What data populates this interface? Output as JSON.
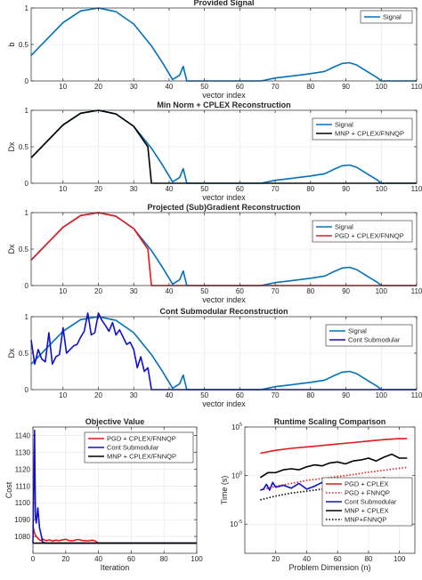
{
  "chart_data": [
    {
      "type": "line",
      "title": "Provided Signal",
      "xlabel": "vector index",
      "ylabel": "b",
      "xlim": [
        1,
        110
      ],
      "ylim": [
        0,
        1
      ],
      "xticks": [
        "10",
        "20",
        "30",
        "40",
        "50",
        "60",
        "70",
        "80",
        "90",
        "100",
        "110"
      ],
      "yticks": [
        "0",
        "0.5",
        "1"
      ],
      "grid": true,
      "legend_position": "top-right",
      "series": [
        {
          "name": "Signal",
          "color": "#0072BD",
          "x": [
            1,
            5,
            10,
            15,
            20,
            25,
            30,
            35,
            38,
            41,
            43,
            44,
            45,
            50,
            60,
            66,
            70,
            75,
            80,
            84,
            87,
            89,
            91,
            93,
            95,
            97,
            99,
            100,
            110
          ],
          "y": [
            0.35,
            0.55,
            0.8,
            0.96,
            1.0,
            0.95,
            0.78,
            0.48,
            0.26,
            0.02,
            0.08,
            0.2,
            0.0,
            0.0,
            0.0,
            0.0,
            0.04,
            0.07,
            0.1,
            0.13,
            0.2,
            0.24,
            0.25,
            0.22,
            0.16,
            0.1,
            0.04,
            0.0,
            0.0
          ]
        }
      ]
    },
    {
      "type": "line",
      "title": "Min Norm + CPLEX Reconstruction",
      "xlabel": "vector index",
      "ylabel": "Dx",
      "xlim": [
        1,
        110
      ],
      "ylim": [
        0,
        1
      ],
      "xticks": [
        "10",
        "20",
        "30",
        "40",
        "50",
        "60",
        "70",
        "80",
        "90",
        "100",
        "110"
      ],
      "yticks": [
        "0",
        "0.5",
        "1"
      ],
      "grid": true,
      "legend_position": "top-right",
      "series": [
        {
          "name": "Signal",
          "color": "#0072BD",
          "x": [
            1,
            5,
            10,
            15,
            20,
            25,
            30,
            35,
            38,
            41,
            43,
            44,
            45,
            50,
            60,
            66,
            70,
            75,
            80,
            84,
            87,
            89,
            91,
            93,
            95,
            97,
            99,
            100,
            110
          ],
          "y": [
            0.35,
            0.55,
            0.8,
            0.96,
            1.0,
            0.95,
            0.78,
            0.48,
            0.26,
            0.02,
            0.08,
            0.2,
            0.0,
            0.0,
            0.0,
            0.0,
            0.04,
            0.07,
            0.1,
            0.13,
            0.2,
            0.24,
            0.25,
            0.22,
            0.16,
            0.1,
            0.04,
            0.0,
            0.0
          ]
        },
        {
          "name": "MNP + CPLEX/FNNQP",
          "color": "#000000",
          "x": [
            1,
            5,
            10,
            15,
            20,
            25,
            30,
            34,
            35,
            40,
            50,
            60,
            70,
            80,
            90,
            100,
            110
          ],
          "y": [
            0.35,
            0.55,
            0.8,
            0.96,
            1.0,
            0.95,
            0.78,
            0.5,
            0.0,
            0.0,
            0.0,
            0.0,
            0.0,
            0.0,
            0.0,
            0.0,
            0.0
          ]
        }
      ]
    },
    {
      "type": "line",
      "title": "Projected (Sub)Gradient Reconstruction",
      "xlabel": "vector index",
      "ylabel": "Dx",
      "xlim": [
        1,
        110
      ],
      "ylim": [
        0,
        1
      ],
      "xticks": [
        "10",
        "20",
        "30",
        "40",
        "50",
        "60",
        "70",
        "80",
        "90",
        "100",
        "110"
      ],
      "yticks": [
        "0",
        "0.5",
        "1"
      ],
      "grid": true,
      "legend_position": "top-right",
      "series": [
        {
          "name": "Signal",
          "color": "#0072BD",
          "x": [
            1,
            5,
            10,
            15,
            20,
            25,
            30,
            35,
            38,
            41,
            43,
            44,
            45,
            50,
            60,
            66,
            70,
            75,
            80,
            84,
            87,
            89,
            91,
            93,
            95,
            97,
            99,
            100,
            110
          ],
          "y": [
            0.35,
            0.55,
            0.8,
            0.96,
            1.0,
            0.95,
            0.78,
            0.48,
            0.26,
            0.02,
            0.08,
            0.2,
            0.0,
            0.0,
            0.0,
            0.0,
            0.04,
            0.07,
            0.1,
            0.13,
            0.2,
            0.24,
            0.25,
            0.22,
            0.16,
            0.1,
            0.04,
            0.0,
            0.0
          ]
        },
        {
          "name": "PGD + CPLEX/FNNQP",
          "color": "#E41A1C",
          "x": [
            1,
            5,
            10,
            15,
            20,
            25,
            30,
            34,
            35,
            40,
            50,
            60,
            70,
            80,
            90,
            100,
            110
          ],
          "y": [
            0.35,
            0.55,
            0.8,
            0.96,
            1.0,
            0.95,
            0.78,
            0.5,
            0.0,
            0.0,
            0.0,
            0.0,
            0.0,
            0.0,
            0.0,
            0.0,
            0.0
          ]
        }
      ]
    },
    {
      "type": "line",
      "title": "Cont Submodular Reconstruction",
      "xlabel": "vector index",
      "ylabel": "Dx",
      "xlim": [
        1,
        110
      ],
      "ylim": [
        0,
        1
      ],
      "xticks": [
        "10",
        "20",
        "30",
        "40",
        "50",
        "60",
        "70",
        "80",
        "90",
        "100",
        "110"
      ],
      "yticks": [
        "0",
        "0.5",
        "1"
      ],
      "grid": true,
      "legend_position": "top-right",
      "series": [
        {
          "name": "Signal",
          "color": "#0072BD",
          "x": [
            1,
            5,
            10,
            15,
            20,
            25,
            30,
            35,
            38,
            41,
            43,
            44,
            45,
            50,
            60,
            66,
            70,
            75,
            80,
            84,
            87,
            89,
            91,
            93,
            95,
            97,
            99,
            100,
            110
          ],
          "y": [
            0.35,
            0.55,
            0.8,
            0.96,
            1.0,
            0.95,
            0.78,
            0.48,
            0.26,
            0.02,
            0.08,
            0.2,
            0.0,
            0.0,
            0.0,
            0.0,
            0.04,
            0.07,
            0.1,
            0.13,
            0.2,
            0.24,
            0.25,
            0.22,
            0.16,
            0.1,
            0.04,
            0.0,
            0.0
          ]
        },
        {
          "name": "Cont Submodular",
          "color": "#1010CC",
          "x": [
            1,
            2,
            3,
            4,
            5,
            6,
            7,
            8,
            9,
            10,
            11,
            12,
            13,
            14,
            15,
            16,
            17,
            18,
            19,
            20,
            21,
            22,
            23,
            24,
            25,
            26,
            27,
            28,
            29,
            30,
            31,
            32,
            33,
            34,
            35,
            40,
            50,
            60,
            70,
            80,
            90,
            100,
            110
          ],
          "y": [
            0.68,
            0.35,
            0.55,
            0.42,
            0.38,
            0.78,
            0.35,
            0.45,
            0.48,
            0.85,
            0.5,
            0.55,
            0.6,
            0.62,
            0.72,
            0.8,
            1.05,
            0.75,
            0.78,
            1.05,
            0.95,
            0.88,
            0.8,
            0.92,
            0.75,
            0.82,
            0.72,
            0.62,
            0.65,
            0.55,
            0.3,
            0.45,
            0.25,
            0.3,
            0.0,
            0.0,
            0.0,
            0.0,
            0.0,
            0.0,
            0.0,
            0.0,
            0.0
          ]
        }
      ]
    },
    {
      "type": "line",
      "title": "Objective Value",
      "xlabel": "Iteration",
      "ylabel": "Cost",
      "xlim": [
        0,
        100
      ],
      "ylim": [
        1070,
        1145
      ],
      "xticks": [
        "0",
        "20",
        "40",
        "60",
        "80",
        "100"
      ],
      "yticks": [
        "1080",
        "1090",
        "1100",
        "1110",
        "1120",
        "1130",
        "1140"
      ],
      "grid": true,
      "legend_position": "top-right",
      "series": [
        {
          "name": "PGD + CPLEX/FNNQP",
          "color": "#E41A1C",
          "x": [
            0,
            1,
            2,
            3,
            4,
            5,
            6,
            8,
            10,
            12,
            14,
            16,
            18,
            20,
            22,
            24,
            26,
            28,
            30,
            32,
            34,
            36,
            38,
            40,
            100
          ],
          "y": [
            1086,
            1082,
            1080,
            1079,
            1078,
            1077.5,
            1078.5,
            1077.5,
            1078,
            1077.3,
            1077.8,
            1077.5,
            1078,
            1078.3,
            1077.6,
            1077.4,
            1077.9,
            1078.2,
            1077.6,
            1077.5,
            1077.4,
            1077.8,
            1077.4,
            1076,
            1076
          ]
        },
        {
          "name": "Cont Submodular",
          "color": "#1010CC",
          "x": [
            0,
            1,
            1.5,
            2,
            3,
            4,
            5,
            6,
            8,
            100
          ],
          "y": [
            1076,
            1143,
            1092,
            1088,
            1097,
            1085,
            1081,
            1076.5,
            1076,
            1076
          ]
        },
        {
          "name": "MNP + CPLEX/FNNQP",
          "color": "#000000",
          "x": [
            0,
            100
          ],
          "y": [
            1076,
            1076
          ]
        }
      ]
    },
    {
      "type": "line",
      "title": "Runtime Scaling Comparison",
      "xlabel": "Problem Dimension (n)",
      "ylabel": "Time (s)",
      "xlim": [
        0,
        110
      ],
      "ylim": [
        -8,
        5
      ],
      "yscale": "log",
      "xticks": [
        "20",
        "40",
        "60",
        "80",
        "100"
      ],
      "yticks": [
        "10^-5",
        "10^0",
        "10^5"
      ],
      "grid": true,
      "legend_position": "center-right",
      "series": [
        {
          "name": "PGD + CPLEX",
          "color": "#E41A1C",
          "style": "solid",
          "x": [
            10,
            20,
            30,
            40,
            50,
            60,
            70,
            80,
            90,
            100,
            105
          ],
          "y": [
            2.3,
            2.6,
            2.8,
            2.95,
            3.1,
            3.25,
            3.4,
            3.55,
            3.7,
            3.8,
            3.8
          ]
        },
        {
          "name": "PGD + FNNQP",
          "color": "#E41A1C",
          "style": "dotted",
          "x": [
            10,
            20,
            30,
            40,
            50,
            60,
            70,
            80,
            90,
            100,
            105
          ],
          "y": [
            -1.5,
            -1.1,
            -0.8,
            -0.5,
            -0.3,
            -0.1,
            0.1,
            0.35,
            0.55,
            0.75,
            0.85
          ]
        },
        {
          "name": "Cont Submodular",
          "color": "#1010CC",
          "style": "solid",
          "x": [
            10,
            12,
            14,
            16,
            18,
            20,
            25,
            30,
            35,
            40,
            45,
            50,
            55,
            60,
            65,
            70,
            75,
            80,
            85,
            90,
            95,
            100,
            105
          ],
          "y": [
            -1.5,
            -1.4,
            -0.9,
            -1.5,
            -0.7,
            -1.2,
            -1.0,
            -1.3,
            -0.8,
            -1.4,
            -1.1,
            -0.7,
            -1.3,
            -1.2,
            -1.0,
            -1.4,
            -1.3,
            -1.2,
            -1.1,
            -0.2,
            -1.0,
            -1.1,
            -0.9
          ]
        },
        {
          "name": "MNP + CPLEX",
          "color": "#000000",
          "style": "solid",
          "x": [
            10,
            15,
            20,
            25,
            30,
            35,
            40,
            45,
            50,
            55,
            60,
            65,
            70,
            75,
            80,
            85,
            90,
            95,
            100,
            105
          ],
          "y": [
            -0.2,
            0.3,
            0.3,
            0.6,
            0.7,
            0.6,
            0.9,
            1.1,
            1.0,
            1.3,
            1.4,
            1.2,
            1.5,
            1.6,
            1.8,
            1.5,
            1.9,
            2.2,
            1.8,
            1.8
          ]
        },
        {
          "name": "MNP+FNNQP",
          "color": "#000000",
          "style": "dotted",
          "x": [
            10,
            20,
            30,
            40,
            50,
            60,
            70,
            80,
            90,
            100,
            105
          ],
          "y": [
            -2.5,
            -2.1,
            -1.8,
            -1.6,
            -1.4,
            -1.2,
            -1.0,
            -0.8,
            -0.6,
            -0.4,
            -0.3
          ]
        }
      ]
    }
  ]
}
